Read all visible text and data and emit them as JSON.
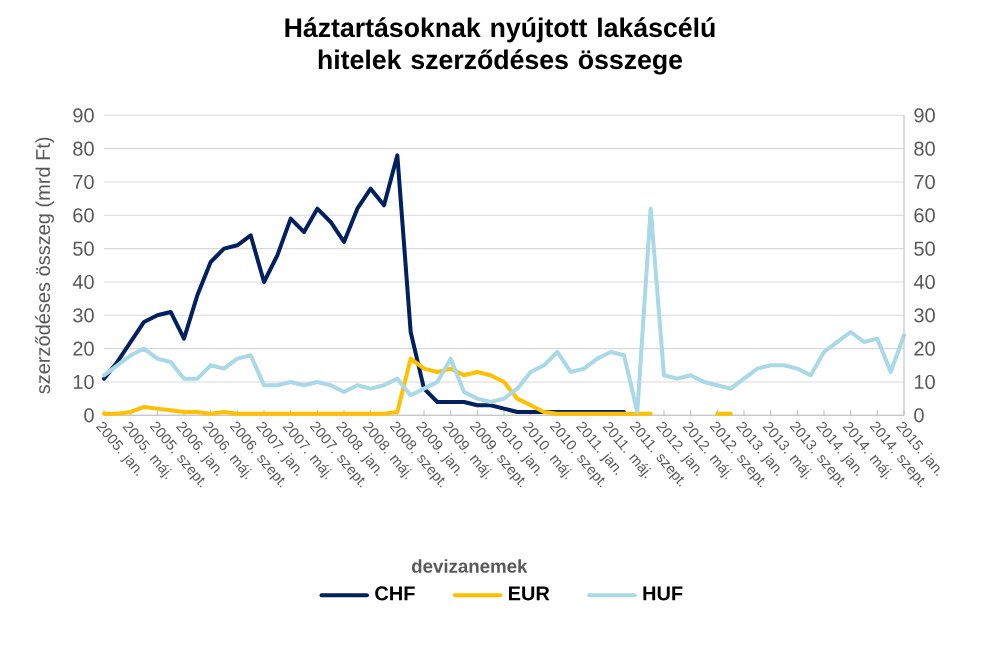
{
  "chart_data": {
    "type": "line",
    "title": "Háztartásoknak nyújtott lakáscélú hitelek szerződéses összege",
    "ylabel": "szerződéses összeg (mrd Ft)",
    "legend_title": "devizanemek",
    "legend": "bottom",
    "grid": "y",
    "categories": [
      "2005. jan.",
      null,
      "2005. máj.",
      null,
      "2005. szept.",
      null,
      "2006. jan.",
      null,
      "2006. máj.",
      null,
      "2006. szept.",
      null,
      "2007. jan.",
      null,
      "2007. máj.",
      null,
      "2007. szept.",
      null,
      "2008. jan.",
      null,
      "2008. máj.",
      null,
      "2008. szept.",
      null,
      "2009. jan.",
      null,
      "2009. máj.",
      null,
      "2009. szept.",
      null,
      "2010. jan.",
      null,
      "2010. máj.",
      null,
      "2010. szept.",
      null,
      "2011. jan.",
      null,
      "2011. máj.",
      null,
      "2011. szept.",
      null,
      "2012. jan.",
      null,
      "2012. máj.",
      null,
      "2012. szept.",
      null,
      "2013. jan.",
      null,
      "2013. máj.",
      null,
      "2013. szept.",
      null,
      "2014. jan.",
      null,
      "2014. máj.",
      null,
      "2014. szept.",
      null,
      "2015. jan."
    ],
    "ylim": [
      0,
      90
    ],
    "yticks": [
      0,
      10,
      20,
      30,
      40,
      50,
      60,
      70,
      80,
      90
    ],
    "y2lim": [
      0,
      90
    ],
    "y2ticks": [
      0,
      10,
      20,
      30,
      40,
      50,
      60,
      70,
      80,
      90
    ],
    "series": [
      {
        "name": "CHF",
        "color": "#002060",
        "values": [
          11,
          16,
          22,
          28,
          30,
          31,
          23,
          36,
          46,
          50,
          51,
          54,
          40,
          48,
          59,
          55,
          62,
          58,
          52,
          62,
          68,
          63,
          78,
          25,
          8,
          4,
          4,
          4,
          3,
          3,
          2,
          1,
          1,
          1,
          1,
          1,
          1,
          1,
          1,
          1,
          null,
          null,
          null,
          null,
          null,
          null,
          null,
          null,
          null,
          null,
          null,
          null,
          null,
          null,
          null,
          null,
          null,
          null,
          null,
          null,
          null
        ]
      },
      {
        "name": "EUR",
        "color": "#ffc000",
        "values": [
          0.5,
          0.5,
          1,
          2.5,
          2,
          1.5,
          1,
          1,
          0.5,
          1,
          0.5,
          0.5,
          0.5,
          0.5,
          0.5,
          0.5,
          0.5,
          0.5,
          0.5,
          0.5,
          0.5,
          0.5,
          1,
          17,
          14,
          13,
          14,
          12,
          13,
          12,
          10,
          5,
          3,
          1,
          0.5,
          0.5,
          0.5,
          0.5,
          0.5,
          0.5,
          0.5,
          0.5,
          null,
          null,
          null,
          null,
          0.5,
          0.5,
          null,
          null,
          null,
          null,
          null,
          null,
          null,
          null,
          null,
          null,
          null,
          null,
          null
        ]
      },
      {
        "name": "HUF",
        "color": "#a9d8e6",
        "values": [
          12,
          15,
          18,
          20,
          17,
          16,
          11,
          11,
          15,
          14,
          17,
          18,
          9,
          9,
          10,
          9,
          10,
          9,
          7,
          9,
          8,
          9,
          11,
          6,
          8,
          10,
          17,
          7,
          5,
          4,
          5,
          8,
          13,
          15,
          19,
          13,
          14,
          17,
          19,
          18,
          1,
          62,
          12,
          11,
          12,
          10,
          9,
          8,
          11,
          14,
          15,
          15,
          14,
          12,
          19,
          22,
          25,
          22,
          23,
          13,
          24
        ]
      }
    ]
  }
}
